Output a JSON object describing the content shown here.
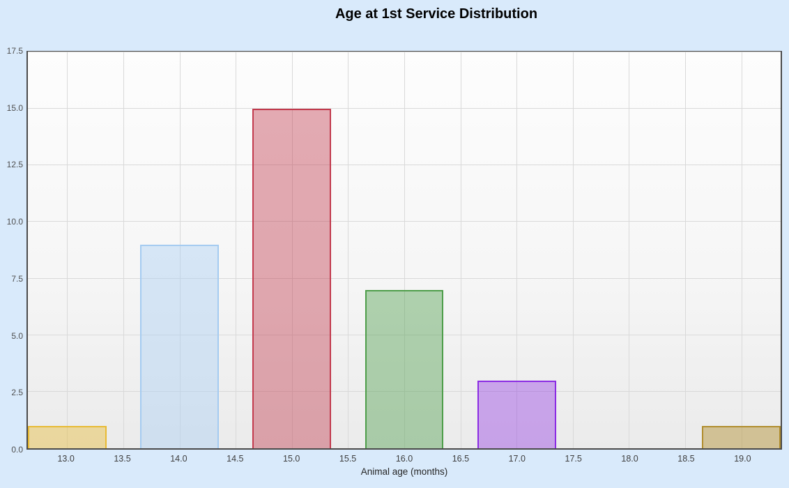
{
  "page": {
    "background": "#d9eafb"
  },
  "style": {
    "title_color": "#000000",
    "plot_border": "#4a4a4a",
    "gridline": "#d9d9d9",
    "plot_bg_top": "#fdfdfd",
    "plot_bg_bottom": "#ebebeb"
  },
  "chart_data": {
    "type": "bar",
    "title": "Age at 1st Service Distribution",
    "xlabel": "Animal age (months)",
    "ylabel": "",
    "grid": true,
    "legend_position": "none",
    "xlim": [
      12.65,
      19.35
    ],
    "ylim": [
      0,
      17.5
    ],
    "bar_width": 0.7,
    "categories": [
      13.0,
      14.0,
      15.0,
      16.0,
      17.0,
      19.0
    ],
    "values": [
      1,
      9,
      15,
      7,
      3,
      1
    ],
    "x_tick_values": [
      13.0,
      13.5,
      14.0,
      14.5,
      15.0,
      15.5,
      16.0,
      16.5,
      17.0,
      17.5,
      18.0,
      18.5,
      19.0
    ],
    "x_tick_labels": [
      "13.0",
      "13.5",
      "14.0",
      "14.5",
      "15.0",
      "15.5",
      "16.0",
      "16.5",
      "17.0",
      "17.5",
      "18.0",
      "18.5",
      "19.0"
    ],
    "y_tick_values": [
      0,
      2.5,
      5,
      7.5,
      10,
      12.5,
      15,
      17.5
    ],
    "y_tick_labels": [
      "0.0",
      "2.5",
      "5.0",
      "7.5",
      "10.0",
      "12.5",
      "15.0",
      "17.5"
    ],
    "bars": [
      {
        "x": 13.0,
        "value": 1,
        "fill": "rgba(232,186,51,0.42)",
        "border": "#e8ba33"
      },
      {
        "x": 14.0,
        "value": 9,
        "fill": "rgba(173,209,244,0.45)",
        "border": "#a4cbf1"
      },
      {
        "x": 15.0,
        "value": 15,
        "fill": "rgba(194,57,77,0.42)",
        "border": "#c23a4d"
      },
      {
        "x": 16.0,
        "value": 7,
        "fill": "rgba(77,157,73,0.42)",
        "border": "#4d9d49"
      },
      {
        "x": 17.0,
        "value": 3,
        "fill": "rgba(139,43,227,0.38)",
        "border": "#8b2be3"
      },
      {
        "x": 19.0,
        "value": 1,
        "fill": "rgba(177,141,45,0.45)",
        "border": "#b18d2d"
      }
    ]
  }
}
